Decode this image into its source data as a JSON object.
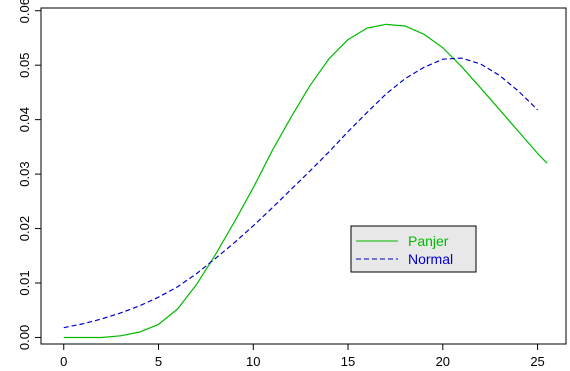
{
  "chart_data": {
    "type": "line",
    "title": "",
    "xlabel": "",
    "ylabel": "",
    "xlim": [
      -1.2,
      26.5
    ],
    "ylim": [
      -0.0012,
      0.0605
    ],
    "x_ticks": [
      0,
      5,
      10,
      15,
      20,
      25
    ],
    "x_tick_labels": [
      "0",
      "5",
      "10",
      "15",
      "20",
      "25"
    ],
    "y_ticks": [
      0.0,
      0.01,
      0.02,
      0.03,
      0.04,
      0.05,
      0.06
    ],
    "y_tick_labels": [
      "0.00",
      "0.01",
      "0.02",
      "0.03",
      "0.04",
      "0.05",
      "0.06"
    ],
    "grid": false,
    "legend_position": "center-right",
    "series": [
      {
        "name": "Panjer",
        "color": "#00bb00",
        "dash": "solid",
        "x": [
          0,
          1,
          2,
          3,
          4,
          5,
          6,
          7,
          8,
          9,
          10,
          11,
          12,
          13,
          14,
          15,
          16,
          17,
          18,
          19,
          20,
          21,
          22,
          23,
          24,
          25,
          25.5
        ],
        "y": [
          0.0,
          0.0,
          0.0,
          0.0003,
          0.001,
          0.0024,
          0.0052,
          0.0097,
          0.0152,
          0.0212,
          0.0275,
          0.0343,
          0.0405,
          0.0463,
          0.0512,
          0.0547,
          0.0568,
          0.0575,
          0.0572,
          0.0557,
          0.0532,
          0.0497,
          0.0458,
          0.0418,
          0.0378,
          0.0338,
          0.032
        ]
      },
      {
        "name": "Normal",
        "color": "#0000cc",
        "dash": "dashed",
        "x": [
          0,
          1,
          2,
          3,
          4,
          5,
          6,
          7,
          8,
          9,
          10,
          11,
          12,
          13,
          14,
          15,
          16,
          17,
          18,
          19,
          20,
          21,
          22,
          23,
          24,
          25
        ],
        "y": [
          0.0018,
          0.0025,
          0.0034,
          0.0045,
          0.0058,
          0.0074,
          0.0093,
          0.0117,
          0.0145,
          0.0174,
          0.0205,
          0.0238,
          0.0272,
          0.0306,
          0.0341,
          0.0378,
          0.0413,
          0.0447,
          0.0475,
          0.0496,
          0.0511,
          0.0513,
          0.0502,
          0.0481,
          0.0452,
          0.0418
        ]
      }
    ]
  }
}
